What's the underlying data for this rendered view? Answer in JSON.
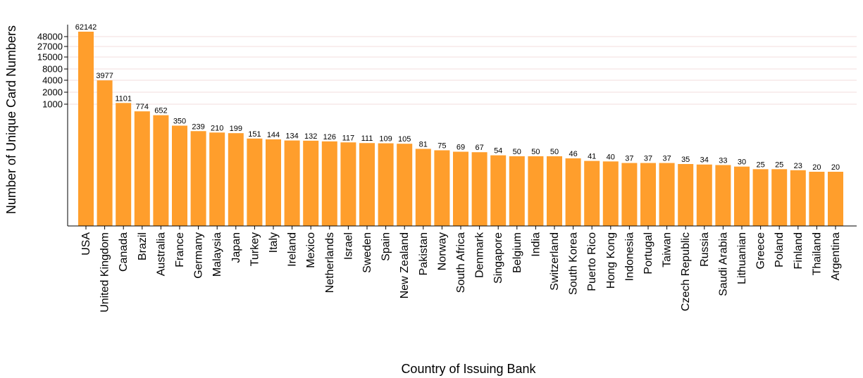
{
  "chart_data": {
    "type": "bar",
    "title": "",
    "xlabel": "Country of Issuing Bank",
    "ylabel": "Number of Unique Card Numbers",
    "yscale": "custom-compressed (roughly logarithmic)",
    "y_ticks": [
      1000,
      2000,
      4000,
      8000,
      15000,
      27000,
      48000
    ],
    "grid": "horizontal lines at y ticks",
    "bar_color": "#FF9E2C",
    "grid_color": "#f3dede",
    "categories": [
      "USA",
      "United Kingdom",
      "Canada",
      "Brazil",
      "Australia",
      "France",
      "Germany",
      "Malaysia",
      "Japan",
      "Turkey",
      "Italy",
      "Ireland",
      "Mexico",
      "Netherlands",
      "Israel",
      "Sweden",
      "Spain",
      "New Zealand",
      "Pakistan",
      "Norway",
      "South Africa",
      "Denmark",
      "Singapore",
      "Belgium",
      "India",
      "Switzerland",
      "South Korea",
      "Puerto Rico",
      "Hong Kong",
      "Indonesia",
      "Portugal",
      "Taiwan",
      "Czech Republic",
      "Russia",
      "Saudi Arabia",
      "Lithuanian",
      "Greece",
      "Poland",
      "Finland",
      "Thailand",
      "Argentina"
    ],
    "values": [
      62142,
      3977,
      1101,
      774,
      652,
      350,
      239,
      210,
      199,
      151,
      144,
      134,
      132,
      126,
      117,
      111,
      109,
      105,
      81,
      75,
      69,
      67,
      54,
      50,
      50,
      50,
      46,
      41,
      40,
      37,
      37,
      37,
      35,
      34,
      33,
      30,
      25,
      25,
      23,
      20,
      20
    ]
  }
}
